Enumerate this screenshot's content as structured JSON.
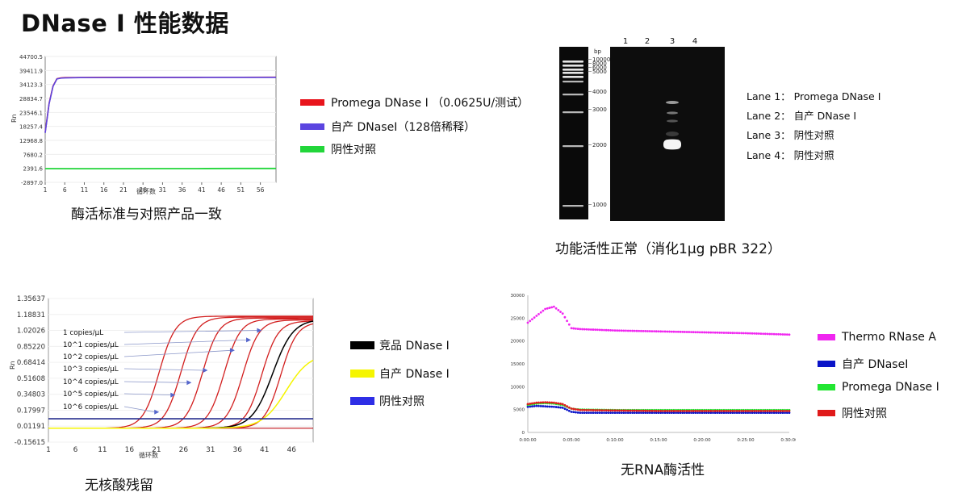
{
  "page_title": "DNase I 性能数据",
  "captions": {
    "panel1": "酶活标准与对照产品一致",
    "panel2": "功能活性正常（消化1μg pBR 322）",
    "panel3": "无核酸残留",
    "panel4": "无RNA酶活性"
  },
  "colors": {
    "red": "#e8141c",
    "purple": "#5b45e0",
    "green": "#22d63a",
    "black": "#000000",
    "yellow": "#f5f500",
    "blue": "#2e2ee6",
    "magenta": "#f026f0",
    "navy": "#0a14c8",
    "bright_green": "#22e632",
    "dark_red": "#e01a1a"
  },
  "chart_data": [
    {
      "id": "panel1",
      "type": "line",
      "ylabel": "Rn",
      "xlabel": "循环数",
      "xlim": [
        1,
        60
      ],
      "ylim": [
        -2897.0,
        44700.5
      ],
      "y_ticks": [
        "44700.5",
        "39411.9",
        "34123.3",
        "28834.7",
        "23546.1",
        "18257.4",
        "12968.8",
        "7680.2",
        "2391.6",
        "-2897.0"
      ],
      "x_ticks": [
        "1",
        "6",
        "11",
        "16",
        "21",
        "26",
        "31",
        "36",
        "41",
        "46",
        "51",
        "56"
      ],
      "legend": [
        "Promega DNase Ⅰ （0.0625U/测试）",
        "自产 DNaseⅠ（128倍稀释）",
        "阴性对照"
      ],
      "series": [
        {
          "name": "Promega DNase Ⅰ （0.0625U/测试）",
          "color_key": "red",
          "x": [
            1,
            2,
            3,
            4,
            5,
            6,
            10,
            20,
            40,
            60
          ],
          "y": [
            16000,
            27000,
            33500,
            36300,
            36600,
            36700,
            36750,
            36800,
            36800,
            36850
          ]
        },
        {
          "name": "自产 DNaseⅠ（128倍稀释）",
          "color_key": "purple",
          "x": [
            1,
            2,
            3,
            4,
            5,
            6,
            10,
            20,
            40,
            60
          ],
          "y": [
            15800,
            26800,
            33400,
            36200,
            36500,
            36600,
            36700,
            36750,
            36800,
            36800
          ]
        },
        {
          "name": "阴性对照",
          "color_key": "green",
          "x": [
            1,
            10,
            20,
            30,
            40,
            50,
            60
          ],
          "y": [
            2300,
            2250,
            2250,
            2300,
            2300,
            2350,
            2350
          ]
        }
      ]
    },
    {
      "id": "panel2",
      "type": "table",
      "lanes": [
        "1",
        "2",
        "3",
        "4"
      ],
      "bp_unit": "bp",
      "ladder_labels": [
        "10000",
        "8000",
        "6000",
        "5000",
        "4000",
        "3000",
        "2000",
        "1000"
      ],
      "lane_legend": [
        "Lane 1： Promega DNase Ⅰ",
        "Lane 2： 自产 DNase Ⅰ",
        "Lane 3： 阴性对照",
        "Lane 4： 阴性对照"
      ]
    },
    {
      "id": "panel3",
      "type": "line",
      "ylabel": "Rn",
      "xlabel": "循环数",
      "xlim": [
        1,
        50
      ],
      "ylim": [
        -0.15615,
        1.35637
      ],
      "y_ticks": [
        "1.35637",
        "1.18831",
        "1.02026",
        "0.85220",
        "0.68414",
        "0.51608",
        "0.34803",
        "0.17997",
        "0.01191",
        "-0.15615"
      ],
      "x_ticks": [
        "1",
        "6",
        "11",
        "16",
        "21",
        "26",
        "31",
        "36",
        "41",
        "46"
      ],
      "dilution_labels": [
        "1 copies/μL",
        "10^1 copies/μL",
        "10^2 copies/μL",
        "10^3 copies/μL",
        "10^4 copies/μL",
        "10^5 copies/μL",
        "10^6 copies/μL"
      ],
      "threshold": 0.09,
      "legend": [
        "竞品 DNase Ⅰ",
        "自产 DNase Ⅰ",
        "阴性对照"
      ],
      "red_curve_midpoints": [
        21.5,
        25.5,
        29.5,
        33.5,
        37.0,
        40.5,
        44.0
      ],
      "series": [
        {
          "name": "竞品 DNase Ⅰ",
          "color_key": "black",
          "midpoint": 42.5,
          "top": 1.14
        },
        {
          "name": "自产 DNase Ⅰ",
          "color_key": "yellow",
          "midpoint": 45.0,
          "top": 0.78
        },
        {
          "name": "阴性对照",
          "color_key": "blue",
          "flat": 0.09
        }
      ]
    },
    {
      "id": "panel4",
      "type": "scatter",
      "ylim": [
        0,
        30000
      ],
      "y_ticks": [
        "30000",
        "25000",
        "20000",
        "15000",
        "10000",
        "5000",
        "0"
      ],
      "x_ticks": [
        "0:00:00",
        "0:05:00",
        "0:10:00",
        "0:15:00",
        "0:20:00",
        "0:25:00",
        "0:30:00"
      ],
      "xlim": [
        0,
        30
      ],
      "legend": [
        "Thermo RNase A",
        "自产 DNaseⅠ",
        "Promega DNase Ⅰ",
        "阴性对照"
      ],
      "series": [
        {
          "name": "Thermo RNase A",
          "color_key": "magenta",
          "x": [
            0,
            1,
            2,
            3,
            4,
            5,
            6,
            10,
            15,
            20,
            25,
            30
          ],
          "y": [
            24000,
            25500,
            27000,
            27500,
            26000,
            22800,
            22600,
            22300,
            22100,
            21900,
            21700,
            21400
          ]
        },
        {
          "name": "自产 DNaseⅠ",
          "color_key": "navy",
          "x": [
            0,
            1,
            2,
            3,
            4,
            5,
            6,
            10,
            15,
            20,
            25,
            30
          ],
          "y": [
            5600,
            5800,
            5700,
            5600,
            5400,
            4500,
            4300,
            4300,
            4300,
            4300,
            4300,
            4300
          ]
        },
        {
          "name": "Promega DNase Ⅰ",
          "color_key": "bright_green",
          "x": [
            0,
            1,
            2,
            3,
            4,
            5,
            6,
            10,
            15,
            20,
            25,
            30
          ],
          "y": [
            6000,
            6300,
            6400,
            6300,
            6000,
            5200,
            5000,
            4900,
            4900,
            4900,
            4900,
            4900
          ]
        },
        {
          "name": "阴性对照",
          "color_key": "dark_red",
          "x": [
            0,
            1,
            2,
            3,
            4,
            5,
            6,
            10,
            15,
            20,
            25,
            30
          ],
          "y": [
            6200,
            6500,
            6600,
            6500,
            6200,
            5200,
            4900,
            4800,
            4700,
            4700,
            4700,
            4700
          ]
        }
      ]
    }
  ]
}
